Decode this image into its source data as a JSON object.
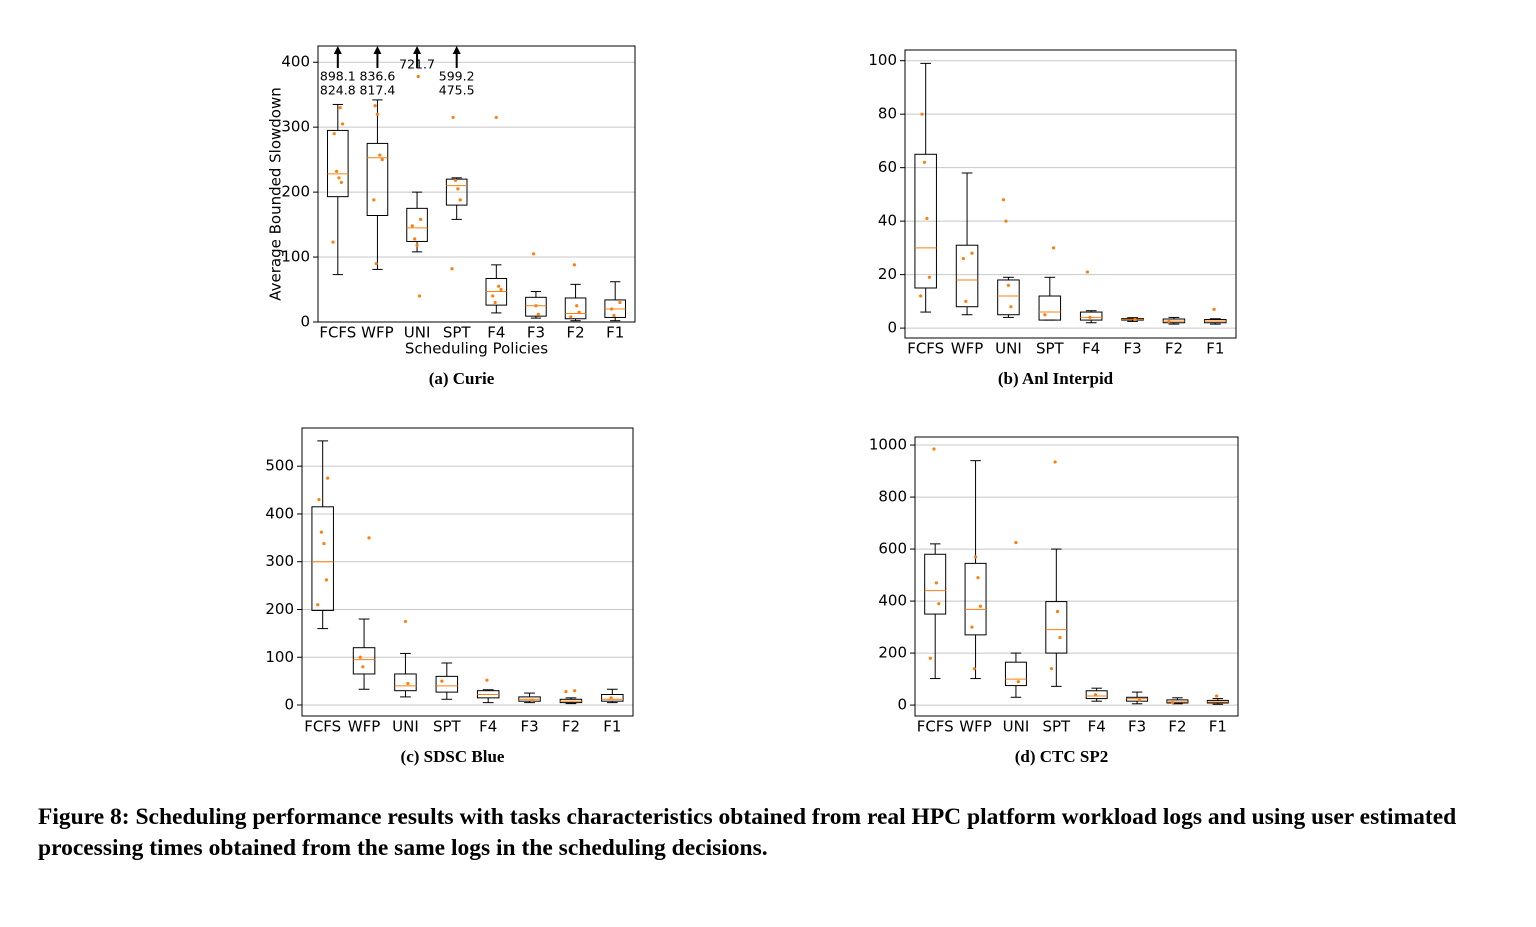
{
  "figure_caption": "Figure 8: Scheduling performance results with tasks characteristics obtained from real HPC platform workload logs and using user estimated processing times obtained from the same logs in the scheduling decisions.",
  "chart_data": [
    {
      "type": "box",
      "caption": "(a) Curie",
      "xlabel": "Scheduling Policies",
      "ylabel": "Average Bounded Slowdown",
      "categories": [
        "FCFS",
        "WFP",
        "UNI",
        "SPT",
        "F4",
        "F3",
        "F2",
        "F1"
      ],
      "ylim": [
        0,
        425
      ],
      "yticks": [
        0,
        100,
        200,
        300,
        400
      ],
      "grid": true,
      "box_color": "#000000",
      "median_color": "#ff7f0e",
      "point_color": "#ff7f0e",
      "boxes": [
        {
          "whislo": 73,
          "q1": 193,
          "med": 228,
          "q3": 295,
          "whishi": 335
        },
        {
          "whislo": 81,
          "q1": 164,
          "med": 253,
          "q3": 275,
          "whishi": 342
        },
        {
          "whislo": 108,
          "q1": 124,
          "med": 145,
          "q3": 175,
          "whishi": 200
        },
        {
          "whislo": 158,
          "q1": 180,
          "med": 210,
          "q3": 220,
          "whishi": 222
        },
        {
          "whislo": 14,
          "q1": 26,
          "med": 47,
          "q3": 67,
          "whishi": 88
        },
        {
          "whislo": 6,
          "q1": 9,
          "med": 25,
          "q3": 38,
          "whishi": 47
        },
        {
          "whislo": 2,
          "q1": 5,
          "med": 13,
          "q3": 37,
          "whishi": 58
        },
        {
          "whislo": 2,
          "q1": 7,
          "med": 20,
          "q3": 34,
          "whishi": 62
        }
      ],
      "points": [
        [
          123,
          215,
          222,
          232,
          290,
          305,
          330
        ],
        [
          90,
          188,
          250,
          257,
          320,
          333
        ],
        [
          40,
          118,
          128,
          148,
          158,
          378
        ],
        [
          82,
          188,
          205,
          218,
          315
        ],
        [
          30,
          40,
          50,
          55,
          315
        ],
        [
          12,
          25,
          105
        ],
        [
          8,
          15,
          25,
          88
        ],
        [
          10,
          20,
          30
        ]
      ],
      "offscale_values": [
        [
          898.1,
          824.8
        ],
        [
          836.6,
          817.4
        ],
        [
          721.7
        ],
        [
          599.2,
          475.5
        ],
        null,
        null,
        null,
        null
      ]
    },
    {
      "type": "box",
      "caption": "(b) Anl Interpid",
      "categories": [
        "FCFS",
        "WFP",
        "UNI",
        "SPT",
        "F4",
        "F3",
        "F2",
        "F1"
      ],
      "ylim": [
        -3.7,
        104
      ],
      "yticks": [
        0,
        20,
        40,
        60,
        80,
        100
      ],
      "grid": true,
      "box_color": "#000000",
      "median_color": "#ff7f0e",
      "point_color": "#ff7f0e",
      "boxes": [
        {
          "whislo": 6,
          "q1": 15,
          "med": 30,
          "q3": 65,
          "whishi": 99
        },
        {
          "whislo": 5,
          "q1": 8,
          "med": 18,
          "q3": 31,
          "whishi": 58
        },
        {
          "whislo": 4,
          "q1": 5,
          "med": 12,
          "q3": 18,
          "whishi": 19
        },
        {
          "whislo": 3,
          "q1": 3,
          "med": 6,
          "q3": 12,
          "whishi": 19
        },
        {
          "whislo": 2,
          "q1": 3,
          "med": 4,
          "q3": 6,
          "whishi": 6.5
        },
        {
          "whislo": 2.5,
          "q1": 3,
          "med": 3.3,
          "q3": 3.6,
          "whishi": 3.9
        },
        {
          "whislo": 1.5,
          "q1": 2,
          "med": 2.6,
          "q3": 3.4,
          "whishi": 4
        },
        {
          "whislo": 1.5,
          "q1": 2,
          "med": 2.6,
          "q3": 3.2,
          "whishi": 3.5
        }
      ],
      "points": [
        [
          12,
          19,
          41,
          62,
          80
        ],
        [
          10,
          26,
          28
        ],
        [
          8,
          16,
          40,
          48
        ],
        [
          5,
          30
        ],
        [
          4,
          21
        ],
        [
          3.2
        ],
        [
          2.5
        ],
        [
          7
        ]
      ]
    },
    {
      "type": "box",
      "caption": "(c) SDSC Blue",
      "categories": [
        "FCFS",
        "WFP",
        "UNI",
        "SPT",
        "F4",
        "F3",
        "F2",
        "F1"
      ],
      "ylim": [
        -23,
        580
      ],
      "yticks": [
        0,
        100,
        200,
        300,
        400,
        500
      ],
      "grid": true,
      "box_color": "#000000",
      "median_color": "#ff7f0e",
      "point_color": "#ff7f0e",
      "boxes": [
        {
          "whislo": 160,
          "q1": 198,
          "med": 300,
          "q3": 415,
          "whishi": 553
        },
        {
          "whislo": 33,
          "q1": 65,
          "med": 95,
          "q3": 120,
          "whishi": 180
        },
        {
          "whislo": 17,
          "q1": 30,
          "med": 40,
          "q3": 65,
          "whishi": 108
        },
        {
          "whislo": 12,
          "q1": 27,
          "med": 40,
          "q3": 60,
          "whishi": 88
        },
        {
          "whislo": 5,
          "q1": 15,
          "med": 22,
          "q3": 30,
          "whishi": 32
        },
        {
          "whislo": 5,
          "q1": 8,
          "med": 12,
          "q3": 17,
          "whishi": 25
        },
        {
          "whislo": 3,
          "q1": 5,
          "med": 8,
          "q3": 12,
          "whishi": 15
        },
        {
          "whislo": 5,
          "q1": 8,
          "med": 12,
          "q3": 22,
          "whishi": 33
        }
      ],
      "points": [
        [
          210,
          262,
          338,
          362,
          430,
          475
        ],
        [
          80,
          100,
          350
        ],
        [
          45,
          175
        ],
        [
          50
        ],
        [
          52
        ],
        [
          10
        ],
        [
          28,
          30
        ],
        [
          15
        ]
      ]
    },
    {
      "type": "box",
      "caption": "(d) CTC SP2",
      "categories": [
        "FCFS",
        "WFP",
        "UNI",
        "SPT",
        "F4",
        "F3",
        "F2",
        "F1"
      ],
      "ylim": [
        -42,
        1031
      ],
      "yticks": [
        0,
        200,
        400,
        600,
        800,
        1000
      ],
      "grid": true,
      "box_color": "#000000",
      "median_color": "#ff7f0e",
      "point_color": "#ff7f0e",
      "boxes": [
        {
          "whislo": 102,
          "q1": 350,
          "med": 440,
          "q3": 580,
          "whishi": 620
        },
        {
          "whislo": 102,
          "q1": 270,
          "med": 368,
          "q3": 545,
          "whishi": 940
        },
        {
          "whislo": 30,
          "q1": 75,
          "med": 100,
          "q3": 165,
          "whishi": 200
        },
        {
          "whislo": 72,
          "q1": 200,
          "med": 290,
          "q3": 398,
          "whishi": 600
        },
        {
          "whislo": 15,
          "q1": 25,
          "med": 35,
          "q3": 55,
          "whishi": 65
        },
        {
          "whislo": 5,
          "q1": 15,
          "med": 25,
          "q3": 30,
          "whishi": 50
        },
        {
          "whislo": 5,
          "q1": 8,
          "med": 12,
          "q3": 20,
          "whishi": 28
        },
        {
          "whislo": 3,
          "q1": 8,
          "med": 12,
          "q3": 18,
          "whishi": 25
        }
      ],
      "points": [
        [
          180,
          390,
          470,
          985
        ],
        [
          140,
          300,
          380,
          490,
          570
        ],
        [
          90,
          625
        ],
        [
          140,
          260,
          360,
          935
        ],
        [
          40
        ],
        [
          20
        ],
        [
          10
        ],
        [
          35
        ]
      ]
    }
  ]
}
